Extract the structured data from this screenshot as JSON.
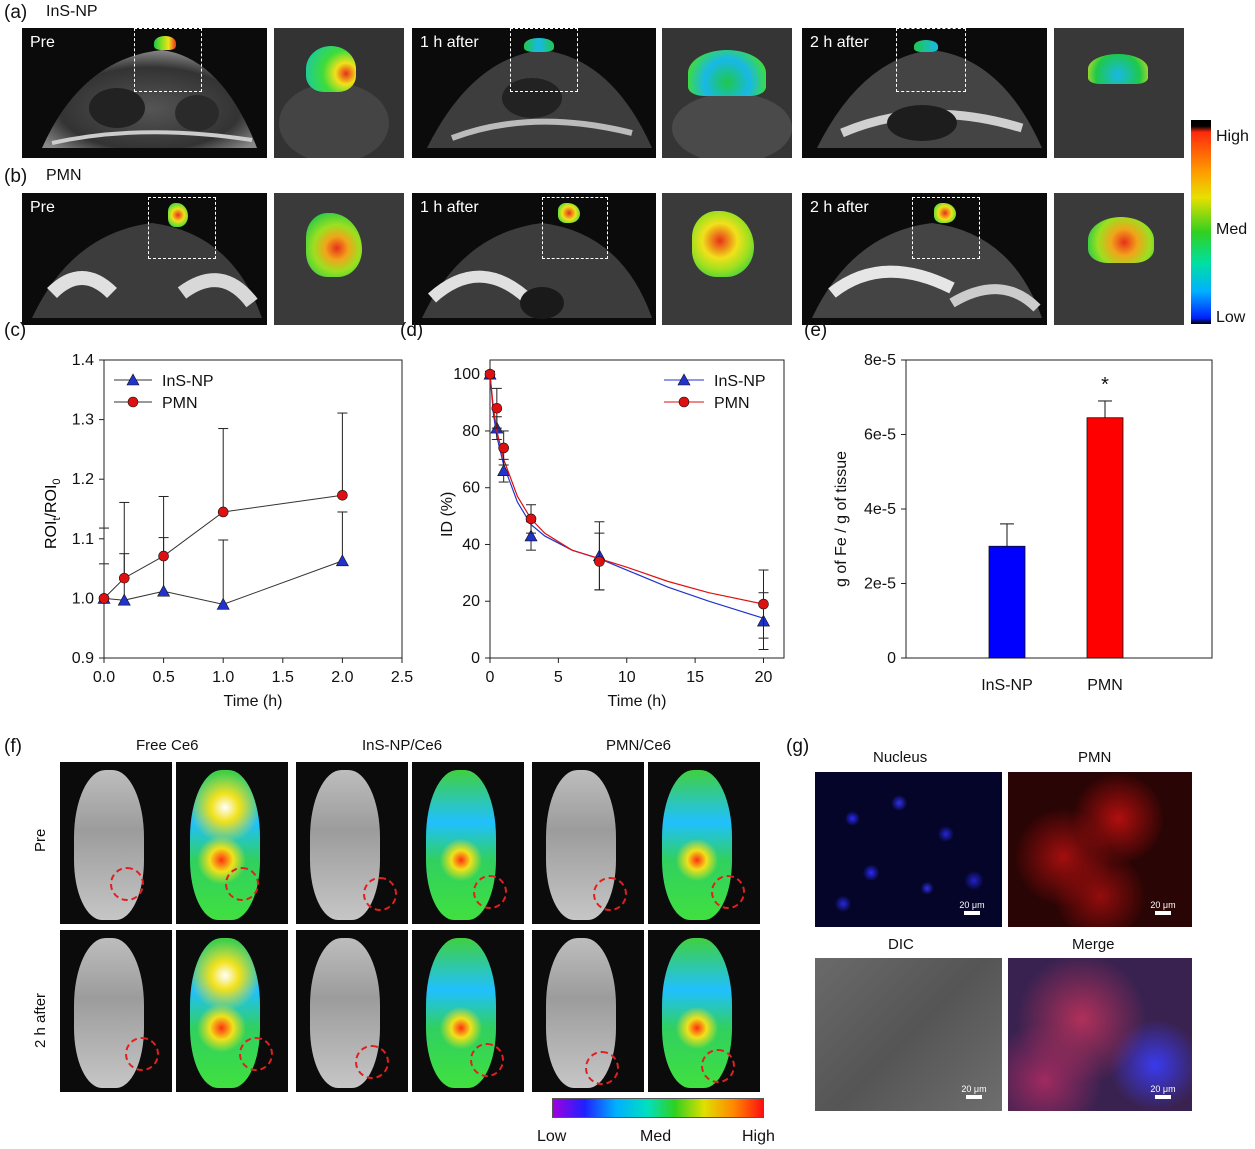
{
  "panels": {
    "a": {
      "label": "(a)",
      "group": "InS-NP",
      "images": [
        "Pre",
        "1 h after",
        "2 h after"
      ]
    },
    "b": {
      "label": "(b)",
      "group": "PMN",
      "images": [
        "Pre",
        "1 h after",
        "2 h after"
      ]
    },
    "colorbar_ab": {
      "high": "High",
      "med": "Med",
      "low": "Low"
    },
    "c": {
      "label": "(c)"
    },
    "d": {
      "label": "(d)"
    },
    "e": {
      "label": "(e)",
      "significance": "*"
    },
    "f": {
      "label": "(f)",
      "columns": [
        "Free Ce6",
        "InS-NP/Ce6",
        "PMN/Ce6"
      ],
      "rows": [
        "Pre",
        "2 h after"
      ],
      "colorbar": {
        "low": "Low",
        "med": "Med",
        "high": "High"
      }
    },
    "g": {
      "label": "(g)",
      "titles": [
        "Nucleus",
        "PMN",
        "DIC",
        "Merge"
      ],
      "scalebar": "20 μm"
    }
  },
  "chart_data": [
    {
      "id": "c",
      "type": "line",
      "xlabel": "Time (h)",
      "ylabel": "ROI",
      "ylabel_sub1": "t",
      "ylabel_mid": "/ROI",
      "ylabel_sub2": "0",
      "xlim": [
        0.0,
        2.5
      ],
      "ylim": [
        0.9,
        1.4
      ],
      "xticks": [
        "0.0",
        "0.5",
        "1.0",
        "1.5",
        "2.0",
        "2.5"
      ],
      "yticks": [
        "0.9",
        "1.0",
        "1.1",
        "1.2",
        "1.3",
        "1.4"
      ],
      "legend_position": "top-left",
      "series": [
        {
          "name": "InS-NP",
          "color": "#2233cc",
          "marker": "triangle",
          "x": [
            0,
            0.17,
            0.5,
            1.0,
            2.0
          ],
          "y": [
            1.0,
            0.997,
            1.012,
            0.99,
            1.063
          ],
          "err_up": [
            0.058,
            0.078,
            0.09,
            0.108,
            0.082
          ]
        },
        {
          "name": "PMN",
          "color": "#dd1111",
          "marker": "circle",
          "x": [
            0,
            0.17,
            0.5,
            1.0,
            2.0
          ],
          "y": [
            1.0,
            1.034,
            1.071,
            1.145,
            1.173
          ],
          "err_up": [
            0.118,
            0.127,
            0.1,
            0.14,
            0.138
          ]
        }
      ]
    },
    {
      "id": "d",
      "type": "line",
      "xlabel": "Time (h)",
      "ylabel": "ID (%)",
      "xlim": [
        0,
        21.5
      ],
      "ylim": [
        0,
        105
      ],
      "xticks": [
        "0",
        "5",
        "10",
        "15",
        "20"
      ],
      "yticks": [
        "0",
        "20",
        "40",
        "60",
        "80",
        "100"
      ],
      "legend_position": "top-right",
      "series": [
        {
          "name": "InS-NP",
          "color": "#2233cc",
          "marker": "triangle",
          "x": [
            0,
            0.5,
            1,
            3,
            8,
            20
          ],
          "y": [
            100,
            81,
            66,
            43,
            36,
            13
          ],
          "err": [
            1,
            4,
            4,
            5,
            12,
            10
          ],
          "fit_x": [
            0,
            0.25,
            0.5,
            1,
            2,
            3,
            4,
            6,
            8,
            10,
            13,
            16,
            20
          ],
          "fit_y": [
            100,
            86,
            78,
            68,
            55,
            47,
            43,
            38,
            35,
            31,
            25,
            20,
            14
          ]
        },
        {
          "name": "PMN",
          "color": "#dd1111",
          "marker": "circle",
          "x": [
            0,
            0.5,
            1,
            3,
            8,
            20
          ],
          "y": [
            100,
            88,
            74,
            49,
            34,
            19
          ],
          "err": [
            1,
            7,
            6,
            5,
            10,
            12
          ],
          "fit_x": [
            0,
            0.25,
            0.5,
            1,
            2,
            3,
            4,
            6,
            8,
            10,
            13,
            16,
            20
          ],
          "fit_y": [
            100,
            88,
            80,
            70,
            57,
            49,
            44,
            38,
            35,
            32,
            27,
            23,
            19
          ]
        }
      ]
    },
    {
      "id": "e",
      "type": "bar",
      "ylabel": "g of Fe / g of tissue",
      "categories": [
        "InS-NP",
        "PMN"
      ],
      "values": [
        3e-05,
        6.45e-05
      ],
      "errors": [
        6e-06,
        4.5e-06
      ],
      "colors": [
        "#0000ff",
        "#ff0000"
      ],
      "ylim": [
        0,
        8e-05
      ],
      "yticks": [
        "0",
        "2e-5",
        "4e-5",
        "6e-5",
        "8e-5"
      ]
    }
  ]
}
